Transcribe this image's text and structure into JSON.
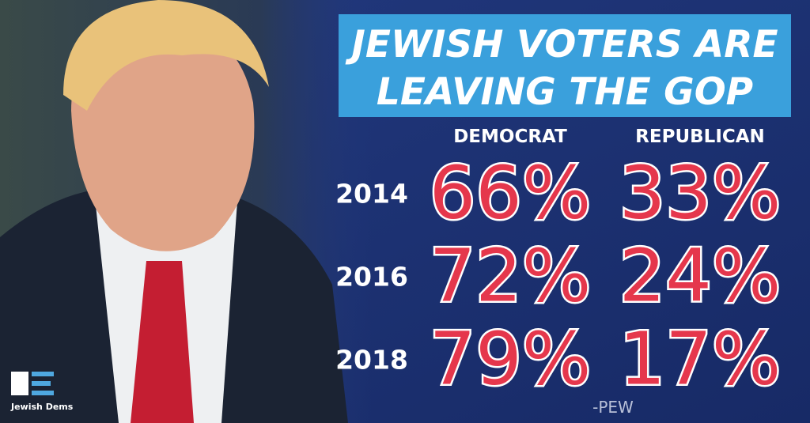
{
  "title": {
    "lines": [
      "JEWISH VOTERS ARE",
      "LEAVING THE GOP"
    ]
  },
  "table": {
    "headers": [
      "DEMOCRAT",
      "REPUBLICAN"
    ],
    "rows": [
      [
        "2014",
        "66%",
        "33%"
      ],
      [
        "2016",
        "72%",
        "24%"
      ],
      [
        "2018",
        "79%",
        "17%"
      ]
    ]
  },
  "source": "-PEW",
  "logo": {
    "text": "Jewish Dems"
  }
}
